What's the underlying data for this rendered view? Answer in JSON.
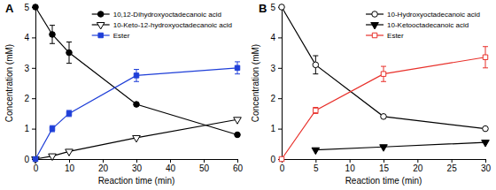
{
  "chart_data": [
    {
      "type": "line",
      "title": "A",
      "xlabel": "Reaction time (min)",
      "ylabel": "Concentration (mM)",
      "x": [
        0,
        5,
        10,
        30,
        60
      ],
      "xlim": [
        0,
        60
      ],
      "xticks": [
        0,
        10,
        20,
        30,
        40,
        50,
        60
      ],
      "ylim": [
        0,
        5
      ],
      "yticks": [
        0,
        1,
        2,
        3,
        4,
        5
      ],
      "legend": "upper right",
      "series": [
        {
          "name": "10,12-Dihydroxyoctadecanoic acid",
          "color": "#000000",
          "marker": "circle",
          "values": [
            5,
            4.1,
            3.5,
            1.8,
            0.8
          ],
          "errors": [
            null,
            0.3,
            0.35,
            null,
            null
          ]
        },
        {
          "name": "10-Keto-12-hydroxyoctadecanoic acid",
          "color": "#000000",
          "marker": "triangle-down-open",
          "values": [
            0,
            0.1,
            0.25,
            0.7,
            1.3
          ]
        },
        {
          "name": "Ester",
          "color": "#1f3fd8",
          "marker": "square",
          "values": [
            0,
            1.0,
            1.5,
            2.75,
            3.0
          ],
          "errors": [
            null,
            0.1,
            0.1,
            0.2,
            0.2
          ]
        }
      ]
    },
    {
      "type": "line",
      "title": "B",
      "xlabel": "Reaction time (min)",
      "ylabel": "Concentration (mM)",
      "x": [
        0,
        5,
        15,
        30
      ],
      "xlim": [
        0,
        30
      ],
      "xticks": [
        0,
        5,
        10,
        15,
        20,
        25,
        30
      ],
      "ylim": [
        0,
        5
      ],
      "yticks": [
        0,
        1,
        2,
        3,
        4,
        5
      ],
      "legend": "upper right",
      "series": [
        {
          "name": "10-Hydroxyoctadecanoic acid",
          "color": "#000000",
          "marker": "circle-open",
          "values": [
            5,
            3.1,
            1.4,
            1.0
          ],
          "errors": [
            null,
            0.3,
            null,
            null
          ]
        },
        {
          "name": "10-Ketooctadecanoic acid",
          "color": "#000000",
          "marker": "triangle-down",
          "values": [
            null,
            0.3,
            0.4,
            0.55
          ]
        },
        {
          "name": "Ester",
          "color": "#e8302a",
          "marker": "square-open",
          "values": [
            0,
            1.6,
            2.8,
            3.35
          ],
          "errors": [
            null,
            0.1,
            0.25,
            0.35
          ]
        }
      ]
    }
  ]
}
